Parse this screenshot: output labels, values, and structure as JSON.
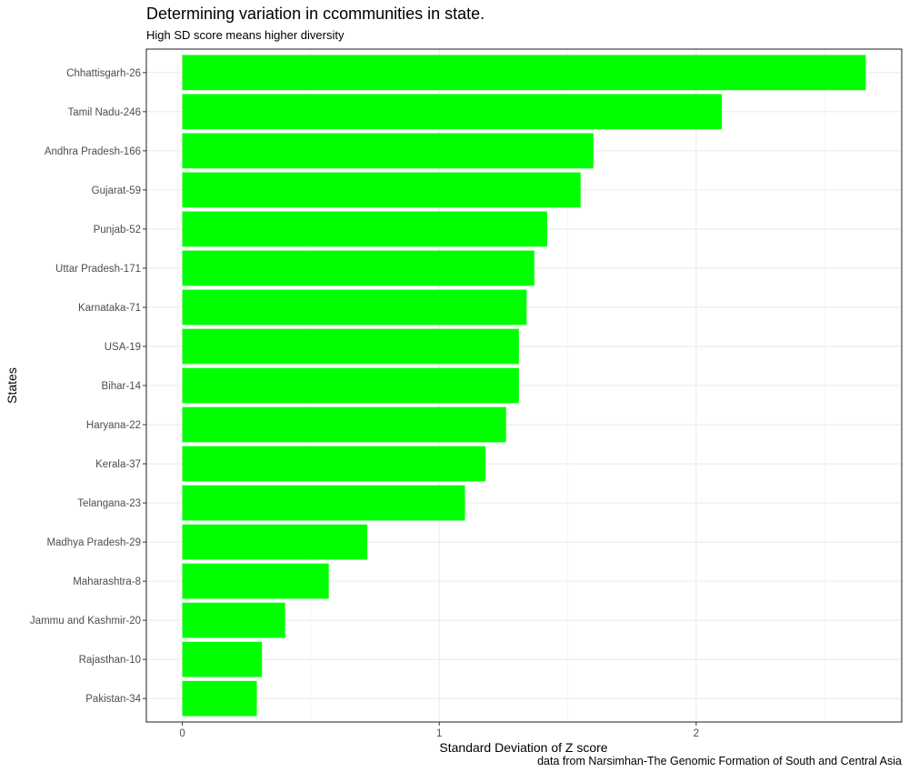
{
  "chart_data": {
    "type": "bar",
    "orientation": "horizontal",
    "title": "Determining variation in ccommunities in state.",
    "subtitle": "High SD score means higher diversity",
    "caption": "data from Narsimhan-The Genomic Formation of South and Central Asia",
    "xlabel": "Standard Deviation of Z score",
    "ylabel": "States",
    "xlim": [
      -0.14,
      2.8
    ],
    "xticks": [
      0,
      1,
      2
    ],
    "xtick_labels": [
      "0",
      "1",
      "2"
    ],
    "grid": true,
    "bar_color": "#00ff00",
    "categories": [
      "Chhattisgarh-26",
      "Tamil Nadu-246",
      "Andhra Pradesh-166",
      "Gujarat-59",
      "Punjab-52",
      "Uttar Pradesh-171",
      "Karnataka-71",
      "USA-19",
      "Bihar-14",
      "Haryana-22",
      "Kerala-37",
      "Telangana-23",
      "Madhya Pradesh-29",
      "Maharashtra-8",
      "Jammu and Kashmir-20",
      "Rajasthan-10",
      "Pakistan-34"
    ],
    "values": [
      2.66,
      2.1,
      1.6,
      1.55,
      1.42,
      1.37,
      1.34,
      1.31,
      1.31,
      1.26,
      1.18,
      1.1,
      0.72,
      0.57,
      0.4,
      0.31,
      0.29
    ]
  }
}
